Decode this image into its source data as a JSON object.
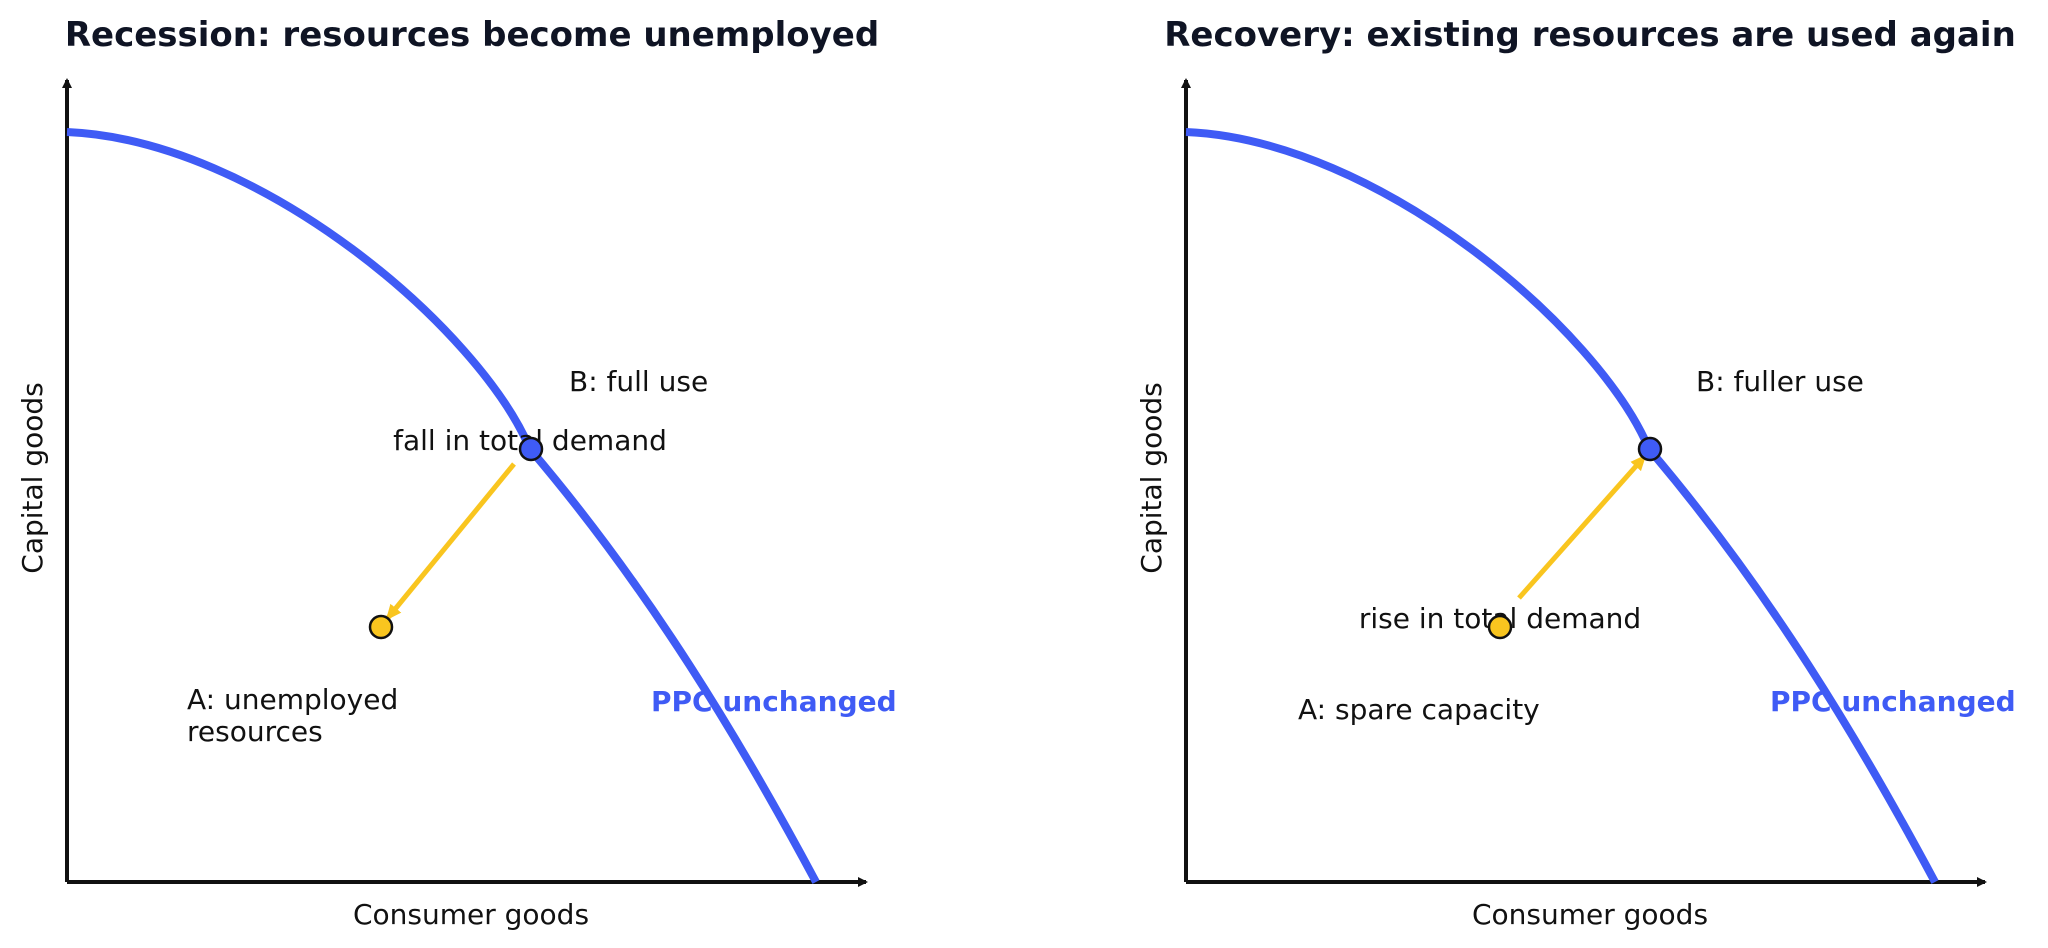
{
  "colors": {
    "ppc": "#3f5bf5",
    "arrow": "#f9c51f",
    "axis": "#111111",
    "point_b": "#3f5bf5",
    "point_a": "#f9c51f"
  },
  "panels": [
    {
      "title": "Recession: resources become unemployed",
      "xlabel": "Consumer goods",
      "ylabel": "Capital goods",
      "ppc_label": "PPC unchanged",
      "point_b": {
        "label": "B: full use"
      },
      "point_a": {
        "label_lines": [
          "A: unemployed",
          "resources"
        ]
      },
      "arrow": {
        "from": "B",
        "to": "A",
        "label": "fall in total demand"
      }
    },
    {
      "title": "Recovery: existing resources are used again",
      "xlabel": "Consumer goods",
      "ylabel": "Capital goods",
      "ppc_label": "PPC unchanged",
      "point_b": {
        "label": "B: fuller use"
      },
      "point_a": {
        "label_lines": [
          "A: spare capacity"
        ]
      },
      "arrow": {
        "from": "A",
        "to": "B",
        "label": "rise in total demand"
      }
    }
  ]
}
